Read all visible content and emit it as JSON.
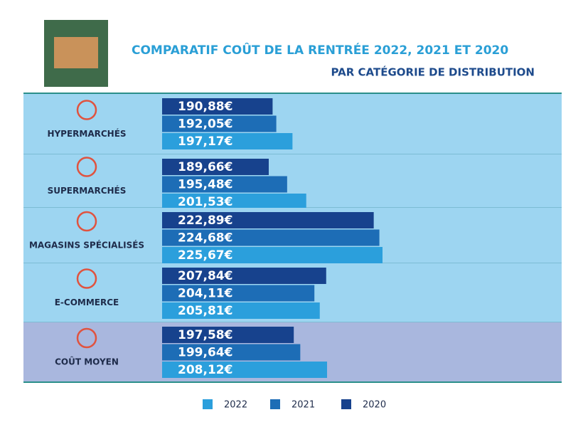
{
  "chart_data": {
    "type": "bar",
    "title": "COMPARATIF COÛT DE LA RENTRÉE 2022, 2021 ET 2020",
    "subtitle": "PAR CATÉGORIE DE DISTRIBUTION",
    "categories": [
      "HYPERMARCHÉS",
      "SUPERMARCHÉS",
      "MAGASINS SPÉCIALISÉS",
      "E-COMMERCE",
      "COÛT MOYEN"
    ],
    "series": [
      {
        "name": "2022",
        "color": "#2b9fdc",
        "values": [
          197.17,
          201.53,
          225.67,
          205.81,
          208.12
        ],
        "value_labels": [
          "197,17€",
          "201,53€",
          "225,67€",
          "205,81€",
          "208,12€"
        ]
      },
      {
        "name": "2021",
        "color": "#1d6db6",
        "values": [
          192.05,
          195.48,
          224.68,
          204.11,
          199.64
        ],
        "value_labels": [
          "192,05€",
          "195,48€",
          "224,68€",
          "204,11€",
          "199,64€"
        ]
      },
      {
        "name": "2020",
        "color": "#17428d",
        "values": [
          190.88,
          189.66,
          222.89,
          207.84,
          197.58
        ],
        "value_labels": [
          "190,88€",
          "189,66€",
          "222,89€",
          "207,84€",
          "197,58€"
        ]
      }
    ]
  }
}
